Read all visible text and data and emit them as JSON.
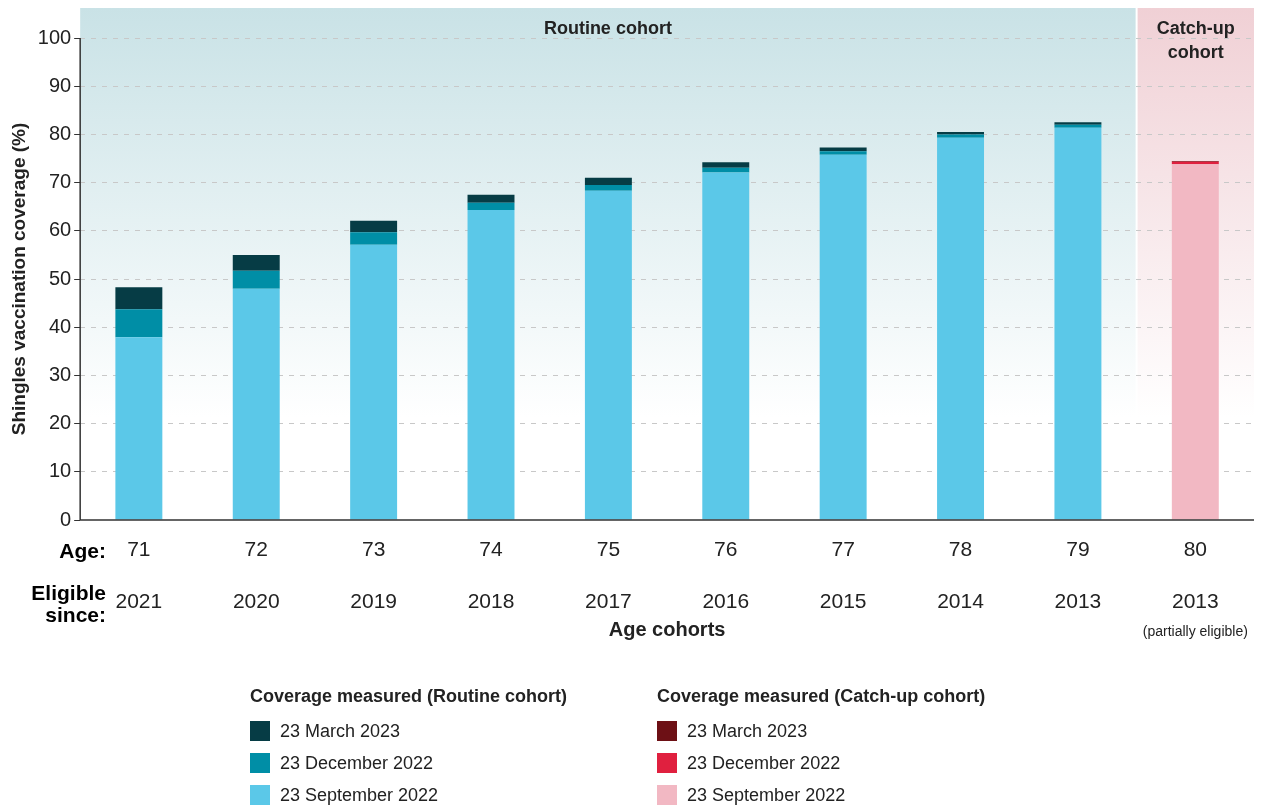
{
  "chart_data": {
    "type": "bar",
    "stacked": true,
    "ylabel": "Shingles vaccination coverage (%)",
    "xlabel": "Age cohorts",
    "categories": [
      "71\n2021",
      "72\n2020",
      "73\n2019",
      "74\n2018",
      "75\n2017",
      "76\n2016",
      "77\n2015",
      "78\n2014",
      "79\n2013",
      "80\n2013\n(partially eligible)"
    ],
    "series": [
      {
        "name": "23 September 2022",
        "color": "#5bc8e8",
        "values": [
          37.9,
          48.0,
          57.1,
          64.3,
          68.3,
          72.1,
          75.8,
          79.3,
          81.4,
          null
        ]
      },
      {
        "name": "23 December 2022",
        "color": "#008ea6",
        "values": [
          5.8,
          3.7,
          2.6,
          1.5,
          1.2,
          1.0,
          0.7,
          0.7,
          0.6,
          null
        ]
      },
      {
        "name": "23 March 2023",
        "color": "#063c45",
        "values": [
          4.6,
          3.3,
          2.4,
          1.7,
          1.5,
          1.1,
          0.8,
          0.5,
          0.5,
          null
        ]
      },
      {
        "name": "23 September 2022",
        "color": "#f2b8c3",
        "values": [
          null,
          null,
          null,
          null,
          null,
          null,
          null,
          null,
          null,
          73.8
        ]
      },
      {
        "name": "23 December 2022",
        "color": "#e0203f",
        "values": [
          null,
          null,
          null,
          null,
          null,
          null,
          null,
          null,
          null,
          0.5
        ]
      },
      {
        "name": "23 March 2023",
        "color": "#6d1015",
        "values": [
          null,
          null,
          null,
          null,
          null,
          null,
          null,
          null,
          null,
          0.2
        ]
      }
    ],
    "ylim": [
      0,
      100
    ],
    "yticks": [
      0,
      10,
      20,
      30,
      40,
      50,
      60,
      70,
      80,
      90,
      100
    ],
    "grid": "y",
    "legend": "bottom",
    "bands": [
      {
        "axis": "x",
        "from": "71\n2021",
        "to": "79\n2013",
        "label": "Routine cohort",
        "color": "#c9e2e6"
      },
      {
        "axis": "x",
        "from": "80\n2013\n(partially eligible)",
        "to": "80\n2013\n(partially eligible)",
        "label": "Catch-up cohort",
        "color": "#f0d0d5"
      }
    ],
    "annotations": [
      "Age:",
      "Eligible since:",
      "Coverage measured (Routine cohort)",
      "Coverage measured (Catch-up cohort)"
    ]
  }
}
